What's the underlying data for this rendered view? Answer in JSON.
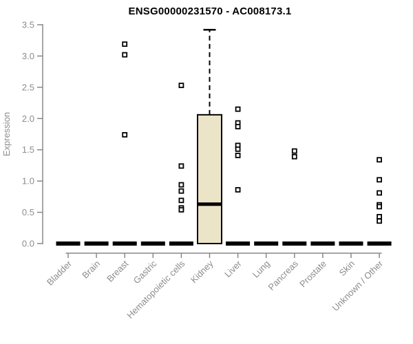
{
  "chart_data": {
    "type": "boxplot",
    "title": "ENSG00000231570 - AC008173.1",
    "ylabel": "Expression",
    "ylim": [
      0,
      3.5
    ],
    "ytick_labels": [
      "0.0",
      "0.5",
      "1.0",
      "1.5",
      "2.0",
      "2.5",
      "3.0",
      "3.5"
    ],
    "grid": false,
    "legend": "none",
    "categories": [
      "Bladder",
      "Brain",
      "Breast",
      "Gastric",
      "Hematopoietic cells",
      "Kidney",
      "Liver",
      "Lung",
      "Pancreas",
      "Prostate",
      "Skin",
      "Unknown / Other"
    ],
    "boxes": [
      {
        "category": "Bladder",
        "low": 0,
        "q1": 0,
        "median": 0,
        "q3": 0,
        "high": 0,
        "outliers": []
      },
      {
        "category": "Brain",
        "low": 0,
        "q1": 0,
        "median": 0,
        "q3": 0,
        "high": 0,
        "outliers": []
      },
      {
        "category": "Breast",
        "low": 0,
        "q1": 0,
        "median": 0,
        "q3": 0,
        "high": 0,
        "outliers": [
          3.19,
          3.02,
          1.74
        ]
      },
      {
        "category": "Gastric",
        "low": 0,
        "q1": 0,
        "median": 0,
        "q3": 0,
        "high": 0,
        "outliers": []
      },
      {
        "category": "Hematopoietic cells",
        "low": 0,
        "q1": 0,
        "median": 0,
        "q3": 0,
        "high": 0,
        "outliers": [
          2.53,
          1.24,
          0.94,
          0.84,
          0.69,
          0.57,
          0.54
        ]
      },
      {
        "category": "Kidney",
        "low": 0,
        "q1": 0,
        "median": 0.63,
        "q3": 2.06,
        "high": 3.42,
        "outliers": []
      },
      {
        "category": "Liver",
        "low": 0,
        "q1": 0,
        "median": 0,
        "q3": 0,
        "high": 0,
        "outliers": [
          2.15,
          1.93,
          1.87,
          1.57,
          1.51,
          1.41,
          0.86
        ]
      },
      {
        "category": "Lung",
        "low": 0,
        "q1": 0,
        "median": 0,
        "q3": 0,
        "high": 0,
        "outliers": []
      },
      {
        "category": "Pancreas",
        "low": 0,
        "q1": 0,
        "median": 0,
        "q3": 0,
        "high": 0,
        "outliers": [
          1.48,
          1.39
        ]
      },
      {
        "category": "Prostate",
        "low": 0,
        "q1": 0,
        "median": 0,
        "q3": 0,
        "high": 0,
        "outliers": []
      },
      {
        "category": "Skin",
        "low": 0,
        "q1": 0,
        "median": 0,
        "q3": 0,
        "high": 0,
        "outliers": []
      },
      {
        "category": "Unknown / Other",
        "low": 0,
        "q1": 0,
        "median": 0,
        "q3": 0,
        "high": 0,
        "outliers": [
          1.34,
          1.02,
          0.81,
          0.62,
          0.59,
          0.43,
          0.36
        ]
      }
    ],
    "colors": {
      "box_fill": "#ECE4C8",
      "box_stroke": "#000000",
      "zero_bar": "#000000",
      "axis_gray": "#888888",
      "text_gray": "#8c8c8c",
      "title_color": "#000000",
      "marker_fill": "#ffffff",
      "background": "#ffffff"
    }
  }
}
